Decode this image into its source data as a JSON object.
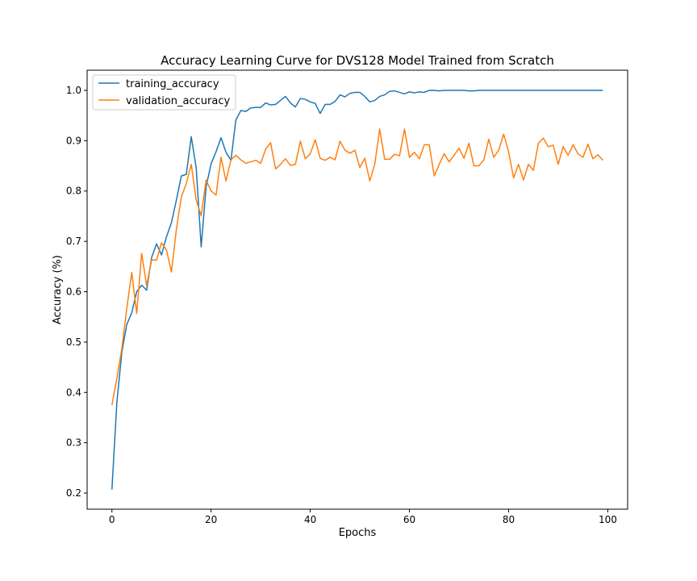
{
  "chart_data": {
    "type": "line",
    "title": "Accuracy Learning Curve for DVS128 Model Trained from Scratch",
    "xlabel": "Epochs",
    "ylabel": "Accuracy (%)",
    "xlim": [
      -5,
      104
    ],
    "ylim": [
      0.168,
      1.04
    ],
    "xticks": [
      0,
      20,
      40,
      60,
      80,
      100
    ],
    "yticks": [
      0.2,
      0.3,
      0.4,
      0.5,
      0.6,
      0.7,
      0.8,
      0.9,
      1.0
    ],
    "ytick_labels": [
      "0.2",
      "0.3",
      "0.4",
      "0.5",
      "0.6",
      "0.7",
      "0.8",
      "0.9",
      "1.0"
    ],
    "xtick_labels": [
      "0",
      "20",
      "40",
      "60",
      "80",
      "100"
    ],
    "grid": false,
    "legend_position": "upper-left",
    "series": [
      {
        "name": "training_accuracy",
        "color": "#1f77b4",
        "x_start": 0,
        "values": [
          0.207,
          0.38,
          0.48,
          0.535,
          0.558,
          0.6,
          0.613,
          0.603,
          0.668,
          0.695,
          0.673,
          0.709,
          0.737,
          0.782,
          0.83,
          0.833,
          0.908,
          0.846,
          0.689,
          0.809,
          0.854,
          0.878,
          0.906,
          0.877,
          0.861,
          0.941,
          0.96,
          0.958,
          0.965,
          0.966,
          0.966,
          0.975,
          0.971,
          0.972,
          0.98,
          0.988,
          0.975,
          0.967,
          0.984,
          0.982,
          0.977,
          0.974,
          0.954,
          0.972,
          0.972,
          0.978,
          0.991,
          0.987,
          0.994,
          0.996,
          0.996,
          0.988,
          0.977,
          0.98,
          0.988,
          0.991,
          0.998,
          0.999,
          0.996,
          0.993,
          0.997,
          0.995,
          0.997,
          0.996,
          1.0,
          1.0,
          0.999,
          1.0,
          1.0,
          1.0,
          1.0,
          1.0,
          0.999,
          0.999,
          1.0,
          1.0,
          1.0,
          1.0,
          1.0,
          1.0,
          1.0,
          1.0,
          1.0,
          1.0,
          1.0,
          1.0,
          1.0,
          1.0,
          1.0,
          1.0,
          1.0,
          1.0,
          1.0,
          1.0,
          1.0,
          1.0,
          1.0,
          1.0,
          1.0,
          1.0
        ]
      },
      {
        "name": "validation_accuracy",
        "color": "#ff7f0e",
        "x_start": 0,
        "values": [
          0.375,
          0.428,
          0.487,
          0.567,
          0.638,
          0.557,
          0.676,
          0.612,
          0.663,
          0.663,
          0.697,
          0.683,
          0.639,
          0.724,
          0.788,
          0.815,
          0.853,
          0.782,
          0.751,
          0.822,
          0.8,
          0.792,
          0.867,
          0.82,
          0.862,
          0.871,
          0.862,
          0.855,
          0.858,
          0.861,
          0.855,
          0.883,
          0.896,
          0.844,
          0.853,
          0.864,
          0.851,
          0.853,
          0.899,
          0.864,
          0.874,
          0.902,
          0.865,
          0.861,
          0.867,
          0.862,
          0.899,
          0.881,
          0.875,
          0.881,
          0.847,
          0.865,
          0.82,
          0.853,
          0.923,
          0.863,
          0.863,
          0.873,
          0.87,
          0.923,
          0.867,
          0.877,
          0.864,
          0.892,
          0.892,
          0.83,
          0.853,
          0.874,
          0.858,
          0.871,
          0.885,
          0.865,
          0.895,
          0.85,
          0.85,
          0.862,
          0.903,
          0.867,
          0.881,
          0.913,
          0.878,
          0.826,
          0.853,
          0.822,
          0.853,
          0.841,
          0.895,
          0.905,
          0.888,
          0.891,
          0.853,
          0.888,
          0.871,
          0.892,
          0.874,
          0.867,
          0.893,
          0.864,
          0.872,
          0.861
        ]
      }
    ]
  }
}
